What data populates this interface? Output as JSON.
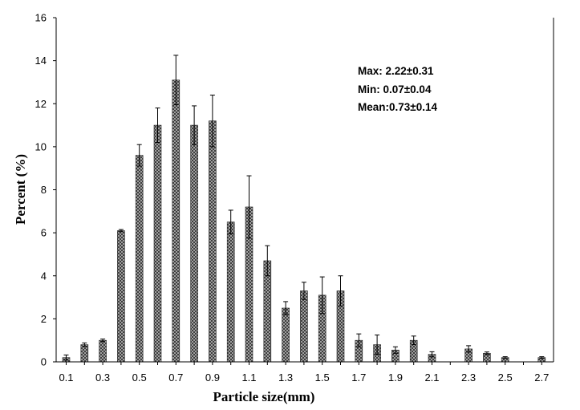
{
  "chart_data": {
    "type": "bar",
    "xlabel": "Particle size(mm)",
    "ylabel": "Percent (%)",
    "ylim": [
      0,
      16
    ],
    "yticks": [
      "0",
      "2",
      "4",
      "6",
      "8",
      "10",
      "12",
      "14",
      "16"
    ],
    "xticks": [
      "0.1",
      "0.3",
      "0.5",
      "0.7",
      "0.9",
      "1.1",
      "1.3",
      "1.5",
      "1.7",
      "1.9",
      "2.1",
      "2.3",
      "2.5",
      "2.7"
    ],
    "x": [
      0.1,
      0.2,
      0.3,
      0.4,
      0.5,
      0.6,
      0.7,
      0.8,
      0.9,
      1.0,
      1.1,
      1.2,
      1.3,
      1.4,
      1.5,
      1.6,
      1.7,
      1.8,
      1.9,
      2.0,
      2.1,
      2.2,
      2.3,
      2.4,
      2.5,
      2.6,
      2.7
    ],
    "values": [
      0.2,
      0.8,
      1.0,
      6.1,
      9.6,
      11.0,
      13.1,
      11.0,
      11.2,
      6.5,
      7.2,
      4.7,
      2.5,
      3.3,
      3.1,
      3.3,
      1.0,
      0.8,
      0.55,
      1.0,
      0.35,
      0,
      0.6,
      0.4,
      0.2,
      0,
      0.2
    ],
    "errors": [
      0.12,
      0.08,
      0.06,
      0.05,
      0.5,
      0.8,
      1.15,
      0.9,
      1.2,
      0.55,
      1.45,
      0.7,
      0.3,
      0.4,
      0.85,
      0.7,
      0.3,
      0.45,
      0.15,
      0.2,
      0.12,
      0,
      0.15,
      0.06,
      0.04,
      0,
      0.04
    ],
    "grid": false,
    "annotations": [
      "Max: 2.22±0.31",
      "Min:  0.07±0.04",
      "Mean:0.73±0.14"
    ]
  }
}
